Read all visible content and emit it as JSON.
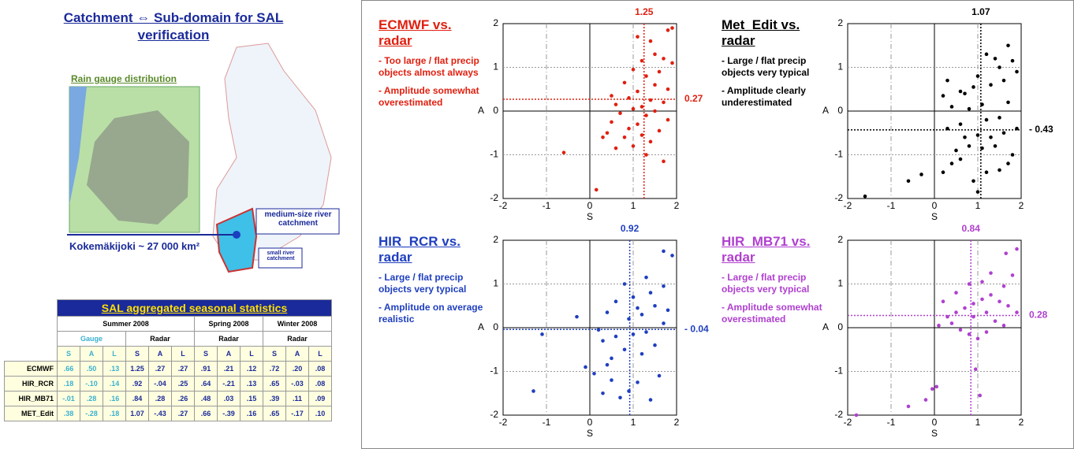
{
  "left_panel": {
    "title": "Catchment ⇔ Sub-domain for SAL verification",
    "inset_title": "Rain gauge distribution",
    "medium_label": "medium-size river catchment",
    "small_label": "small river catchment",
    "catchment_label": "Kokemäkijoki ~ 27 000 km²"
  },
  "table": {
    "title": "SAL aggregated seasonal statistics",
    "seasons": [
      "Summer 2008",
      "Spring 2008",
      "Winter 2008"
    ],
    "sources": [
      "Gauge",
      "Radar",
      "Radar",
      "Radar"
    ],
    "components": [
      "S",
      "A",
      "L"
    ],
    "rows": [
      {
        "model": "ECMWF",
        "values": [
          ".66",
          ".50",
          ".13",
          "1.25",
          ".27",
          ".27",
          ".91",
          ".21",
          ".12",
          ".72",
          ".20",
          ".08"
        ]
      },
      {
        "model": "HIR_RCR",
        "values": [
          ".18",
          "-.10",
          ".14",
          ".92",
          "-.04",
          ".25",
          ".64",
          "-.21",
          ".13",
          ".65",
          "-.03",
          ".08"
        ]
      },
      {
        "model": "HIR_MB71",
        "values": [
          "-.01",
          ".28",
          ".16",
          ".84",
          ".28",
          ".26",
          ".48",
          ".03",
          ".15",
          ".39",
          ".11",
          ".09"
        ]
      },
      {
        "model": "MET_Edit",
        "values": [
          ".38",
          "-.28",
          ".18",
          "1.07",
          "-.43",
          ".27",
          ".66",
          "-.39",
          ".16",
          ".65",
          "-.17",
          ".10"
        ]
      }
    ]
  },
  "chart_data": [
    {
      "type": "scatter",
      "title": "ECMWF vs. radar",
      "notes": [
        "- Too large / flat precip objects almost always",
        "- Amplitude somewhat overestimated"
      ],
      "xlabel": "S",
      "ylabel": "A",
      "color": "#e02010",
      "x": [
        0.15,
        -0.6,
        1.9,
        1.8,
        1.4,
        1.1,
        1.5,
        1.7,
        1.2,
        1.9,
        1.6,
        1.0,
        1.3,
        0.8,
        1.5,
        1.8,
        1.1,
        0.5,
        0.9,
        1.4,
        1.7,
        0.6,
        1.2,
        1.0,
        1.5,
        0.7,
        1.3,
        1.8,
        0.5,
        1.1,
        0.9,
        1.6,
        0.4,
        1.2,
        0.8,
        1.4,
        1.0,
        0.6,
        1.7,
        1.3,
        0.3
      ],
      "values": [
        -1.8,
        -0.95,
        1.9,
        1.85,
        1.6,
        1.7,
        1.3,
        1.2,
        1.15,
        1.1,
        0.9,
        0.95,
        0.8,
        0.65,
        0.6,
        0.5,
        0.45,
        0.35,
        0.3,
        0.25,
        0.2,
        0.15,
        0.1,
        0.05,
        0.0,
        -0.05,
        -0.1,
        -0.2,
        -0.25,
        -0.3,
        -0.4,
        -0.45,
        -0.5,
        -0.55,
        -0.6,
        -0.7,
        -0.8,
        -0.85,
        -1.15,
        -1.0,
        -0.6
      ],
      "mean_s": 1.25,
      "mean_a": 0.27,
      "xlim": [
        -2,
        2
      ],
      "ylim": [
        -2,
        2
      ],
      "xticks": [
        -2,
        -1,
        0,
        1,
        2
      ],
      "yticks": [
        -2,
        -1,
        0,
        1,
        2
      ],
      "grid": true
    },
    {
      "type": "scatter",
      "title": "Met_Edit vs. radar",
      "notes": [
        "- Large / flat precip objects very typical",
        "- Amplitude clearly underestimated"
      ],
      "xlabel": "S",
      "ylabel": "A",
      "color": "#000000",
      "x": [
        -1.6,
        -0.6,
        -0.3,
        0.2,
        0.4,
        0.6,
        1.0,
        0.9,
        1.2,
        1.5,
        1.7,
        1.8,
        0.5,
        0.8,
        1.1,
        1.4,
        0.7,
        1.0,
        1.3,
        1.6,
        1.9,
        0.3,
        0.6,
        1.2,
        1.5,
        0.4,
        0.8,
        1.1,
        1.7,
        0.2,
        0.6,
        0.9,
        1.3,
        1.6,
        0.3,
        1.0,
        1.9,
        1.5,
        1.8,
        1.2,
        1.7,
        1.4,
        0.7
      ],
      "values": [
        -1.95,
        -1.6,
        -1.45,
        -1.4,
        -1.2,
        -1.1,
        -1.85,
        -1.6,
        -1.4,
        -1.35,
        -1.2,
        -1.0,
        -0.9,
        -0.8,
        -0.85,
        -0.8,
        -0.6,
        -0.55,
        -0.6,
        -0.5,
        -0.4,
        -0.4,
        -0.3,
        -0.2,
        -0.15,
        0.1,
        0.05,
        0.15,
        0.2,
        0.35,
        0.45,
        0.55,
        0.6,
        0.7,
        0.7,
        0.8,
        0.9,
        1.0,
        1.15,
        1.3,
        1.5,
        1.2,
        0.4
      ],
      "mean_s": 1.07,
      "mean_a": {
        "value": -0.43,
        "label": "- 0.43"
      },
      "xlim": [
        -2,
        2
      ],
      "ylim": [
        -2,
        2
      ],
      "xticks": [
        -2,
        -1,
        0,
        1,
        2
      ],
      "yticks": [
        -2,
        -1,
        0,
        1,
        2
      ],
      "grid": true
    },
    {
      "type": "scatter",
      "title": "HIR_RCR vs. radar",
      "notes": [
        "- Large / flat precip objects very typical",
        "- Amplitude on average realistic"
      ],
      "xlabel": "S",
      "ylabel": "A",
      "color": "#1f3fbf",
      "x": [
        -1.3,
        -1.1,
        -0.3,
        0.4,
        0.2,
        -0.1,
        0.1,
        0.3,
        0.5,
        0.7,
        0.9,
        1.1,
        1.4,
        1.6,
        0.5,
        0.8,
        1.2,
        1.5,
        0.3,
        0.6,
        1.0,
        1.3,
        1.7,
        0.9,
        1.2,
        1.5,
        1.8,
        0.6,
        1.0,
        1.4,
        1.7,
        0.8,
        1.3,
        1.9,
        1.7,
        1.1,
        0.4
      ],
      "values": [
        -1.45,
        -0.15,
        0.25,
        0.35,
        -0.05,
        -0.9,
        -1.05,
        -1.5,
        -1.2,
        -1.6,
        -1.45,
        -1.25,
        -1.65,
        -1.1,
        -0.7,
        -0.5,
        -0.6,
        -0.4,
        -0.3,
        -0.2,
        -0.15,
        -0.1,
        0.1,
        0.2,
        0.3,
        0.5,
        0.4,
        0.6,
        0.7,
        0.8,
        0.95,
        1.0,
        1.15,
        1.65,
        1.75,
        0.45,
        -0.85
      ],
      "mean_s": 0.92,
      "mean_a": {
        "value": -0.04,
        "label": "- 0.04"
      },
      "xlim": [
        -2,
        2
      ],
      "ylim": [
        -2,
        2
      ],
      "xticks": [
        -2,
        -1,
        0,
        1,
        2
      ],
      "yticks": [
        -2,
        -1,
        0,
        1,
        2
      ],
      "grid": true
    },
    {
      "type": "scatter",
      "title": "HIR_MB71 vs. radar",
      "notes": [
        "- Large / flat precip objects very typical",
        "- Amplitude somewhat overestimated"
      ],
      "xlabel": "S",
      "ylabel": "A",
      "color": "#b040d0",
      "x": [
        -1.8,
        -0.6,
        -0.2,
        -0.05,
        0.05,
        1.05,
        0.95,
        0.1,
        0.3,
        0.5,
        0.7,
        0.9,
        1.1,
        1.3,
        1.5,
        1.7,
        1.9,
        0.4,
        0.6,
        0.8,
        1.0,
        1.2,
        1.4,
        1.6,
        0.2,
        0.5,
        0.8,
        1.1,
        1.3,
        1.6,
        1.8,
        1.65,
        1.9,
        0.9,
        1.2
      ],
      "values": [
        -2.0,
        -1.8,
        -1.65,
        -1.4,
        -1.35,
        -1.55,
        -0.95,
        0.05,
        0.25,
        0.35,
        0.45,
        0.55,
        0.65,
        0.75,
        0.6,
        0.5,
        0.35,
        0.1,
        -0.05,
        -0.15,
        -0.25,
        -0.1,
        0.15,
        0.05,
        0.6,
        0.8,
        1.0,
        1.05,
        1.25,
        0.95,
        1.2,
        1.7,
        1.8,
        0.25,
        0.35
      ],
      "mean_s": 0.84,
      "mean_a": 0.28,
      "xlim": [
        -2,
        2
      ],
      "ylim": [
        -2,
        2
      ],
      "xticks": [
        -2,
        -1,
        0,
        1,
        2
      ],
      "yticks": [
        -2,
        -1,
        0,
        1,
        2
      ],
      "grid": true
    }
  ]
}
